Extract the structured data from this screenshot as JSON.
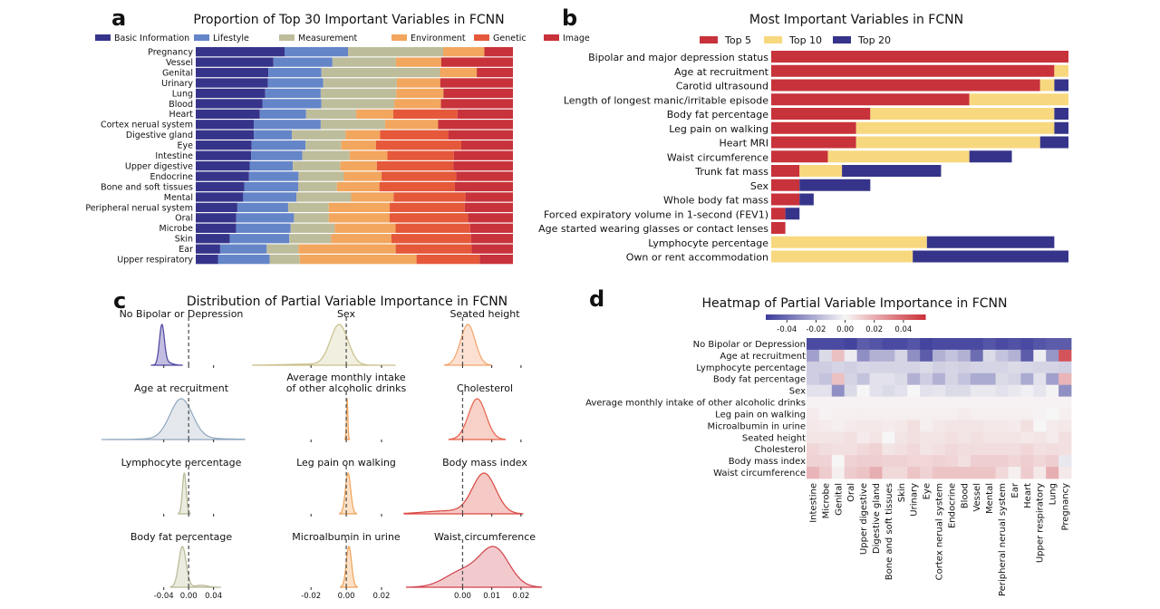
{
  "chart_data": [
    {
      "panel": "a",
      "type": "bar",
      "stacked": true,
      "orientation": "horizontal",
      "title": "Proportion of Top 30 Important Variables in FCNN",
      "legend": "top",
      "xlim": [
        0,
        1
      ],
      "categories": [
        "Pregnancy",
        "Vessel",
        "Genital",
        "Urinary",
        "Lung",
        "Blood",
        "Heart",
        "Cortex nerual system",
        "Digestive gland",
        "Eye",
        "Intestine",
        "Upper digestive",
        "Endocrine",
        "Bone and soft tissues",
        "Mental",
        "Peripheral nerual system",
        "Oral",
        "Microbe",
        "Skin",
        "Ear",
        "Upper respiratory"
      ],
      "series": [
        {
          "name": "Basic Information",
          "color": "#36348a",
          "values": [
            0.28,
            0.245,
            0.229,
            0.227,
            0.219,
            0.21,
            0.202,
            0.183,
            0.183,
            0.176,
            0.175,
            0.17,
            0.168,
            0.153,
            0.15,
            0.131,
            0.128,
            0.127,
            0.107,
            0.077,
            0.07
          ]
        },
        {
          "name": "Lifestyle",
          "color": "#6585c9",
          "values": [
            0.2,
            0.186,
            0.167,
            0.175,
            0.175,
            0.186,
            0.146,
            0.211,
            0.12,
            0.17,
            0.161,
            0.136,
            0.156,
            0.17,
            0.168,
            0.16,
            0.182,
            0.172,
            0.188,
            0.147,
            0.163
          ]
        },
        {
          "name": "Measurement",
          "color": "#bdbd9c",
          "values": [
            0.3,
            0.2,
            0.374,
            0.232,
            0.238,
            0.23,
            0.158,
            0.203,
            0.169,
            0.113,
            0.149,
            0.15,
            0.143,
            0.122,
            0.173,
            0.128,
            0.11,
            0.139,
            0.132,
            0.1,
            0.095
          ]
        },
        {
          "name": "Environment",
          "color": "#f2a65e",
          "values": [
            0.13,
            0.143,
            0.116,
            0.137,
            0.149,
            0.147,
            0.117,
            0.167,
            0.109,
            0.109,
            0.119,
            0.115,
            0.119,
            0.134,
            0.134,
            0.192,
            0.192,
            0.192,
            0.19,
            0.307,
            0.368
          ]
        },
        {
          "name": "Genetic",
          "color": "#e5583a",
          "values": [
            0,
            0,
            0,
            0,
            0,
            0,
            0.202,
            0,
            0.215,
            0.269,
            0.21,
            0.241,
            0.235,
            0.238,
            0.227,
            0.236,
            0.247,
            0.235,
            0.251,
            0.24,
            0.199
          ]
        },
        {
          "name": "Image",
          "color": "#c8323a",
          "values": [
            0.09,
            0.226,
            0.114,
            0.229,
            0.219,
            0.227,
            0.175,
            0.236,
            0.204,
            0.163,
            0.186,
            0.188,
            0.179,
            0.183,
            0.15,
            0.152,
            0.142,
            0.135,
            0.132,
            0.13,
            0.105
          ]
        }
      ]
    },
    {
      "panel": "b",
      "type": "bar",
      "stacked": true,
      "orientation": "horizontal",
      "title": "Most Important Variables in FCNN",
      "legend": "top",
      "xlim": [
        0,
        21
      ],
      "categories": [
        "Bipolar and major depression status",
        "Age at recruitment",
        "Carotid ultrasound",
        "Length of longest manic/irritable episode",
        "Body fat percentage",
        "Leg pain on walking",
        "Heart MRI",
        "Waist circumference",
        "Trunk fat mass",
        "Sex",
        "Whole body fat mass",
        "Forced expiratory volume in 1-second (FEV1)",
        "Age started wearing glasses or contact lenses",
        "Lymphocyte percentage",
        "Own or rent accommodation"
      ],
      "series": [
        {
          "name": "Top 5",
          "color": "#c8323a",
          "values": [
            21,
            20,
            19,
            14,
            7,
            6,
            6,
            4,
            2,
            2,
            2,
            1,
            1,
            0,
            0
          ]
        },
        {
          "name": "Top 10",
          "color": "#f8d87f",
          "values": [
            0,
            1,
            1,
            7,
            13,
            14,
            13,
            10,
            3,
            0,
            0,
            0,
            0,
            11,
            10
          ]
        },
        {
          "name": "Top 20",
          "color": "#35348a",
          "values": [
            0,
            0,
            1,
            0,
            1,
            1,
            2,
            3,
            7,
            5,
            1,
            1,
            0,
            9,
            11
          ]
        }
      ]
    },
    {
      "panel": "c",
      "type": "area",
      "title": "Distribution of Partial Variable Importance in FCNN",
      "columns": [
        {
          "xlim": [
            -0.14,
            0.09
          ],
          "ticks": [
            "-0.04",
            "0.00",
            "0.04"
          ],
          "tick_values": [
            -0.04,
            0,
            0.04
          ]
        },
        {
          "xlim": [
            -0.053,
            0.038
          ],
          "ticks": [
            "-0.02",
            "0.00",
            "0.02"
          ],
          "tick_values": [
            -0.02,
            0,
            0.02
          ]
        },
        {
          "xlim": [
            -0.02,
            0.034
          ],
          "ticks": [
            "0.00",
            "0.01",
            "0.02"
          ],
          "tick_values": [
            0,
            0.01,
            0.02
          ]
        }
      ],
      "subplots": [
        {
          "title": [
            "No Bipolar or Depression"
          ],
          "col": 0,
          "row": 0,
          "color": "#4b43a0",
          "fill": "#b9b3dc",
          "components": [
            [
              1,
              -0.043,
              0.004
            ],
            [
              0.15,
              -0.035,
              0.008
            ]
          ]
        },
        {
          "title": [
            "Age at recruitment"
          ],
          "col": 0,
          "row": 1,
          "color": "#8fa7bd",
          "fill": "#dfe4ea",
          "components": [
            [
              1,
              -0.012,
              0.018
            ],
            [
              0.1,
              0,
              0.05
            ]
          ]
        },
        {
          "title": [
            "Lymphocyte percentage"
          ],
          "col": 0,
          "row": 2,
          "color": "#b8b896",
          "fill": "#e7e7d9",
          "components": [
            [
              1,
              -0.007,
              0.003
            ]
          ]
        },
        {
          "title": [
            "Body fat percentage"
          ],
          "col": 0,
          "row": 3,
          "color": "#b8b896",
          "fill": "#e7e7d9",
          "components": [
            [
              1,
              -0.01,
              0.006
            ],
            [
              0.08,
              0.02,
              0.01
            ]
          ]
        },
        {
          "title": [
            "Sex"
          ],
          "col": 1,
          "row": 0,
          "color": "#c9bf8a",
          "fill": "#efecda",
          "components": [
            [
              1,
              -0.004,
              0.005
            ],
            [
              0.08,
              -0.02,
              0.015
            ]
          ]
        },
        {
          "title": [
            "Average monthly intake",
            "of other alcoholic drinks"
          ],
          "col": 1,
          "row": 1,
          "color": "#f0a35a",
          "fill": "#fbdcbc",
          "components": [
            [
              1,
              0.0005,
              0.0004
            ]
          ]
        },
        {
          "title": [
            "Leg pain on walking"
          ],
          "col": 1,
          "row": 2,
          "color": "#f0a35a",
          "fill": "#fbdcbc",
          "components": [
            [
              1,
              0.001,
              0.0015
            ]
          ]
        },
        {
          "title": [
            "Microalbumin in urine"
          ],
          "col": 1,
          "row": 3,
          "color": "#f0a35a",
          "fill": "#fbdcbc",
          "components": [
            [
              1,
              0.0015,
              0.0015
            ]
          ]
        },
        {
          "title": [
            "Seated height"
          ],
          "col": 2,
          "row": 0,
          "color": "#f4a36b",
          "fill": "#fbdccb",
          "components": [
            [
              1,
              0.0018,
              0.0025
            ]
          ]
        },
        {
          "title": [
            "Cholesterol"
          ],
          "col": 2,
          "row": 1,
          "color": "#e8604a",
          "fill": "#f7c9bf",
          "components": [
            [
              1,
              0.005,
              0.003
            ]
          ]
        },
        {
          "title": [
            "Body mass index"
          ],
          "col": 2,
          "row": 2,
          "color": "#d9473f",
          "fill": "#f2c0bc",
          "components": [
            [
              1,
              0.0074,
              0.004
            ],
            [
              0.15,
              -0.005,
              0.008
            ]
          ]
        },
        {
          "title": [
            "Waist circumference"
          ],
          "col": 2,
          "row": 3,
          "color": "#d2404a",
          "fill": "#f0c1c4",
          "components": [
            [
              1,
              0.011,
              0.005
            ],
            [
              0.5,
              0.0,
              0.006
            ]
          ]
        }
      ]
    },
    {
      "panel": "d",
      "type": "heatmap",
      "title": "Heatmap of Partial Variable Importance in FCNN",
      "colorbar": {
        "range": [
          -0.0545,
          0.055
        ],
        "ticks": [
          "-0.04",
          "-0.02",
          "0.00",
          "0.02",
          "0.04"
        ],
        "tick_values": [
          -0.04,
          -0.02,
          0,
          0.02,
          0.04
        ],
        "low": "#3b3b9a",
        "mid": "#f7f6f6",
        "high": "#cc3038"
      },
      "rows": [
        "No Bipolar or Depression",
        "Age at recruitment",
        "Lymphocyte percentage",
        "Body fat percentage",
        "Sex",
        "Average monthly intake of other alcoholic drinks",
        "Leg pain on walking",
        "Microalbumin in urine",
        "Seated height",
        "Cholesterol",
        "Body mass index",
        "Waist circumference"
      ],
      "columns": [
        "Intestine",
        "Microbe",
        "Genital",
        "Oral",
        "Upper digestive",
        "Digestive gland",
        "Bone and soft tissues",
        "Skin",
        "Urinary",
        "Eye",
        "Cortex nerual system",
        "Endocrine",
        "Blood",
        "Vessel",
        "Mental",
        "Peripheral nerual system",
        "Ear",
        "Heart",
        "Upper respiratory",
        "Lung",
        "Pregnancy"
      ],
      "values": [
        [
          -0.05,
          -0.05,
          -0.05,
          -0.052,
          -0.045,
          -0.047,
          -0.05,
          -0.05,
          -0.047,
          -0.052,
          -0.05,
          -0.05,
          -0.05,
          -0.05,
          -0.047,
          -0.05,
          -0.048,
          -0.05,
          -0.047,
          -0.045,
          -0.045
        ],
        [
          -0.025,
          -0.008,
          0.015,
          -0.003,
          -0.03,
          -0.02,
          -0.02,
          -0.01,
          -0.03,
          -0.045,
          -0.02,
          -0.015,
          -0.02,
          -0.04,
          -0.008,
          -0.015,
          -0.02,
          -0.045,
          -0.003,
          -0.028,
          0.045
        ],
        [
          -0.012,
          -0.012,
          -0.01,
          -0.011,
          -0.009,
          -0.01,
          -0.01,
          -0.01,
          -0.01,
          -0.008,
          -0.011,
          -0.01,
          -0.011,
          -0.01,
          -0.01,
          -0.01,
          -0.008,
          -0.009,
          -0.01,
          -0.01,
          -0.011
        ],
        [
          -0.012,
          -0.015,
          0.015,
          -0.01,
          -0.015,
          -0.006,
          -0.006,
          -0.008,
          -0.02,
          -0.012,
          -0.02,
          -0.01,
          -0.015,
          -0.022,
          -0.022,
          -0.008,
          -0.01,
          -0.022,
          -0.006,
          -0.025,
          0.018
        ],
        [
          -0.006,
          -0.006,
          -0.03,
          -0.008,
          0,
          -0.006,
          -0.008,
          -0.006,
          0,
          -0.006,
          -0.005,
          -0.008,
          -0.008,
          -0.004,
          -0.004,
          -0.006,
          -0.004,
          -0.002,
          -0.005,
          -0.001,
          -0.03
        ],
        [
          0.001,
          0.001,
          0.001,
          0.001,
          0.001,
          0.001,
          0.001,
          0.001,
          0.001,
          0.001,
          0.001,
          0.001,
          0.001,
          0.001,
          0.001,
          0.001,
          0.001,
          0.001,
          0.001,
          0.001,
          0.001
        ],
        [
          0.003,
          0.001,
          0.002,
          0.002,
          0.002,
          0.002,
          0.002,
          0.002,
          0.002,
          0.002,
          0.002,
          0.002,
          0.003,
          0.002,
          0.002,
          0.002,
          0.002,
          0.002,
          0.001,
          0.0,
          0.002
        ],
        [
          0.004,
          0.003,
          0.002,
          0.003,
          0.004,
          0.004,
          0.003,
          0.004,
          0.006,
          0.002,
          0.004,
          0.005,
          0.005,
          0.005,
          0.004,
          0.004,
          0.003,
          0.006,
          0.0,
          0.003,
          0.004
        ],
        [
          0.005,
          0.005,
          0.005,
          0.006,
          0.003,
          0.005,
          0.0,
          0.005,
          0.006,
          0.005,
          0.005,
          0.006,
          0.005,
          0.006,
          0.005,
          0.005,
          0.005,
          0.004,
          0.005,
          0.003,
          0.006
        ],
        [
          0.009,
          0.007,
          0.006,
          0.006,
          0.008,
          0.01,
          0.005,
          0.006,
          0.008,
          0.005,
          0.006,
          0.008,
          0.007,
          0.007,
          0.007,
          0.007,
          0.007,
          0.009,
          0.006,
          0.007,
          0.006
        ],
        [
          0.01,
          0.01,
          0.0,
          0.01,
          0.011,
          0.011,
          0.01,
          0.01,
          0.009,
          0.009,
          0.01,
          0.009,
          0.006,
          0.011,
          0.011,
          0.011,
          0.009,
          0.011,
          0.009,
          0.011,
          -0.004
        ],
        [
          0.018,
          0.012,
          0.002,
          0.012,
          0.014,
          0.02,
          0.008,
          0.008,
          0.014,
          0.01,
          0.014,
          0.014,
          0.014,
          0.014,
          0.014,
          0.008,
          0.002,
          0.012,
          0.004,
          0.02,
          0.004
        ]
      ]
    }
  ],
  "panel_labels": [
    "a",
    "b",
    "c",
    "d"
  ]
}
